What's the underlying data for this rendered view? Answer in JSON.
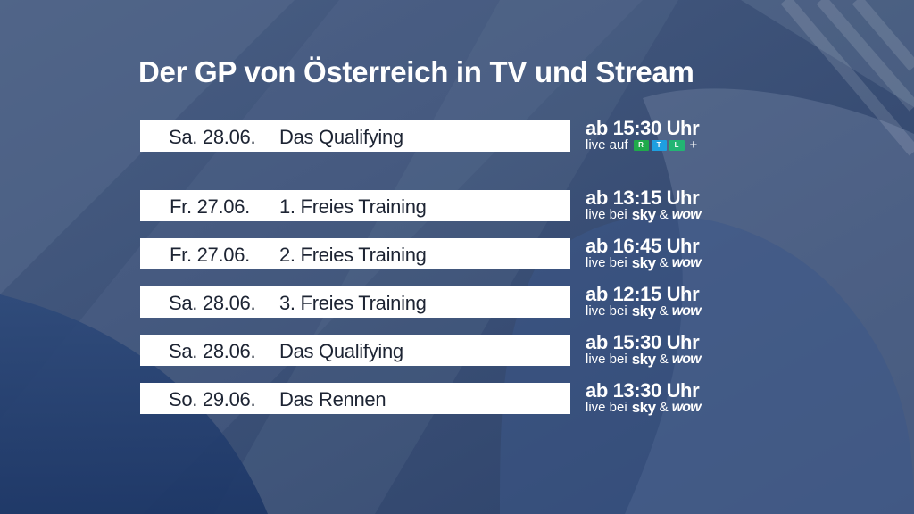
{
  "title": "Der GP von Österreich in TV und Stream",
  "featured": {
    "date": "Sa. 28.06.",
    "event": "Das Qualifying",
    "time": "ab 15:30 Uhr",
    "live_prefix": "live auf",
    "broadcaster": {
      "letters": [
        "R",
        "T",
        "L"
      ],
      "colors": [
        "#1faa4b",
        "#1e9fe0",
        "#22b573"
      ],
      "suffix": "+"
    }
  },
  "schedule": [
    {
      "date": "Fr. 27.06.",
      "event": "1. Freies Training",
      "time": "ab 13:15 Uhr",
      "live_prefix": "live bei",
      "brand1": "sky",
      "amp": "&",
      "brand2": "wow"
    },
    {
      "date": "Fr. 27.06.",
      "event": "2. Freies Training",
      "time": "ab 16:45 Uhr",
      "live_prefix": "live bei",
      "brand1": "sky",
      "amp": "&",
      "brand2": "wow"
    },
    {
      "date": "Sa. 28.06.",
      "event": "3. Freies Training",
      "time": "ab 12:15 Uhr",
      "live_prefix": "live bei",
      "brand1": "sky",
      "amp": "&",
      "brand2": "wow"
    },
    {
      "date": "Sa. 28.06.",
      "event": "Das Qualifying",
      "time": "ab 15:30 Uhr",
      "live_prefix": "live bei",
      "brand1": "sky",
      "amp": "&",
      "brand2": "wow"
    },
    {
      "date": "So. 29.06.",
      "event": "Das Rennen",
      "time": "ab 13:30 Uhr",
      "live_prefix": "live bei",
      "brand1": "sky",
      "amp": "&",
      "brand2": "wow"
    }
  ],
  "colors": {
    "background": "#33496f",
    "bar": "#ffffff",
    "bar_text": "#1d2433",
    "text": "#ffffff"
  }
}
